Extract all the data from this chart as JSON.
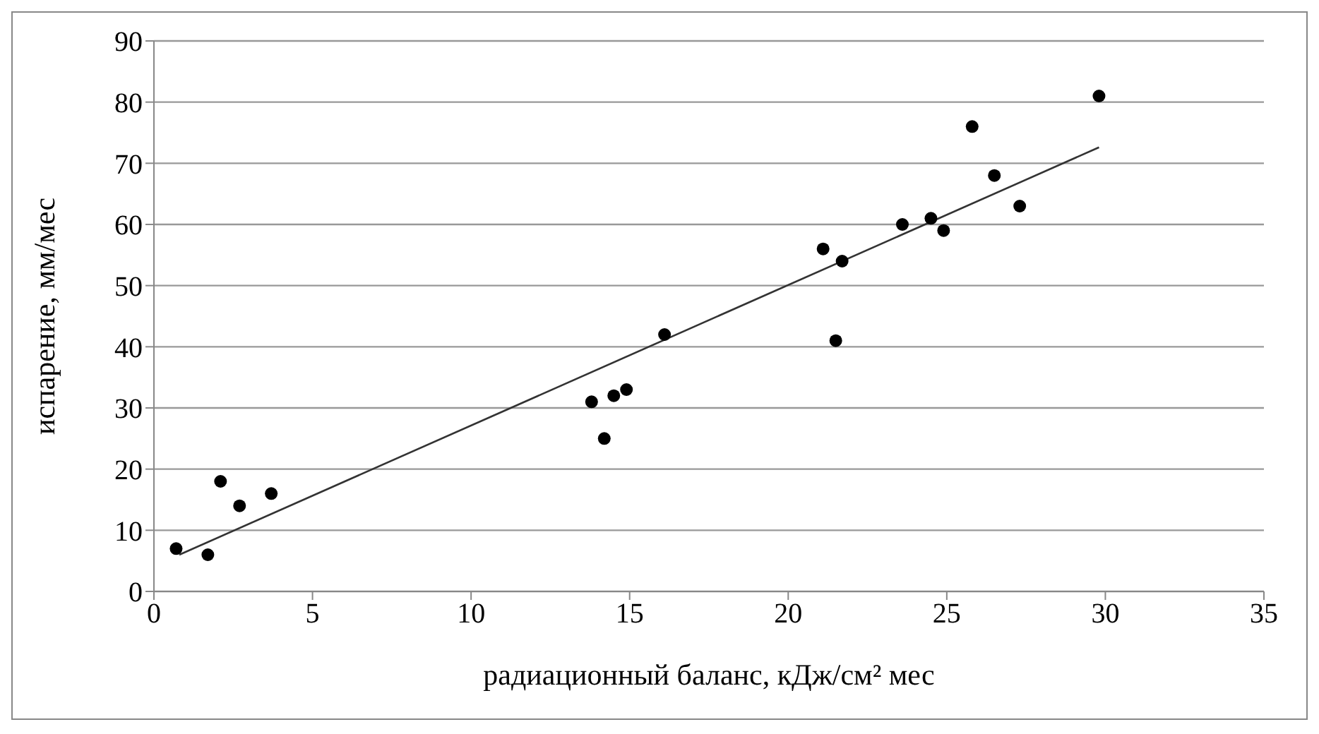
{
  "chart_data": {
    "type": "scatter",
    "xlabel": "радиационный баланс,  кДж/см² мес",
    "ylabel": "испарение, мм/мес",
    "xlim": [
      0,
      35
    ],
    "xticks": [
      0,
      5,
      10,
      15,
      20,
      25,
      30,
      35
    ],
    "ylim": [
      0,
      90
    ],
    "yticks": [
      0,
      10,
      20,
      30,
      40,
      50,
      60,
      70,
      80,
      90
    ],
    "grid": "y",
    "legend": false,
    "series": [
      {
        "color": "#000000",
        "marker": "circle",
        "x": [
          0.7,
          1.7,
          2.1,
          2.7,
          3.7,
          13.8,
          14.2,
          14.5,
          14.9,
          16.1,
          21.1,
          21.5,
          21.7,
          23.6,
          24.5,
          24.9,
          25.8,
          26.5,
          27.3,
          29.8
        ],
        "values": [
          7,
          6,
          18,
          14,
          16,
          31,
          25,
          32,
          33,
          42,
          56,
          41,
          54,
          60,
          61,
          59,
          76,
          68,
          63,
          81
        ]
      },
      {
        "type": "line",
        "color": "#333333",
        "marker": "none",
        "line_style": "solid",
        "x": [
          0.8,
          29.8
        ],
        "values": [
          6.0,
          72.6
        ]
      }
    ]
  }
}
